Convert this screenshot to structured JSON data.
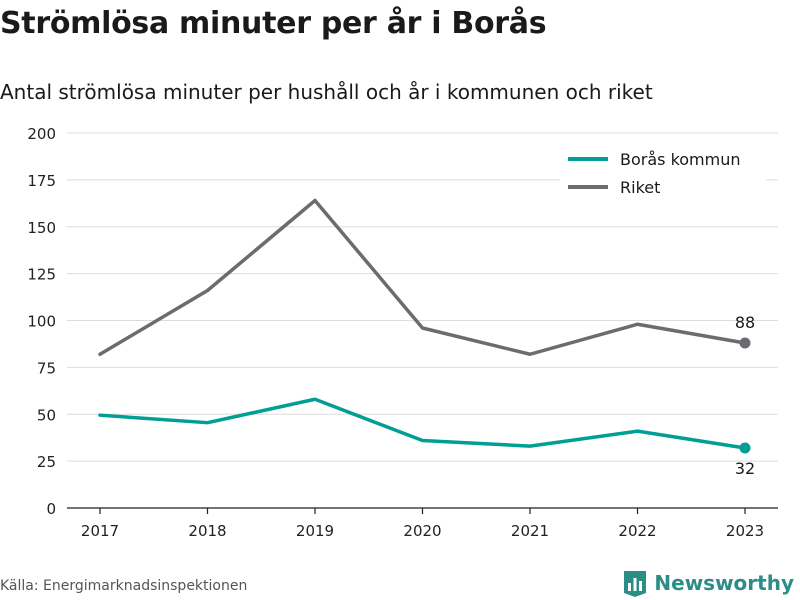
{
  "title": "Strömlösa minuter per år i Borås",
  "subtitle": "Antal strömlösa minuter per hushåll och år i kommunen och riket",
  "source": "Källa: Energimarknadsinspektionen",
  "brand": {
    "name": "Newsworthy",
    "icon": "bar-chart-logo-icon",
    "color": "#2c8c86"
  },
  "chart_data": {
    "type": "line",
    "title": "Strömlösa minuter per år i Borås",
    "subtitle": "Antal strömlösa minuter per hushåll och år i kommunen och riket",
    "xlabel": "",
    "ylabel": "",
    "categories": [
      "2017",
      "2018",
      "2019",
      "2020",
      "2021",
      "2022",
      "2023"
    ],
    "yticks": [
      0,
      25,
      50,
      75,
      100,
      125,
      150,
      175,
      200
    ],
    "ylim": [
      0,
      200
    ],
    "grid": true,
    "legend_position": "top-right",
    "series": [
      {
        "name": "Borås kommun",
        "color": "#009e94",
        "values": [
          49.5,
          45.5,
          58,
          36,
          33,
          41,
          32
        ],
        "end_label": "32",
        "end_label_position": "below"
      },
      {
        "name": "Riket",
        "color": "#6b6b70",
        "values": [
          82,
          116,
          164,
          96,
          82,
          98,
          88
        ],
        "end_label": "88",
        "end_label_position": "above"
      }
    ]
  }
}
